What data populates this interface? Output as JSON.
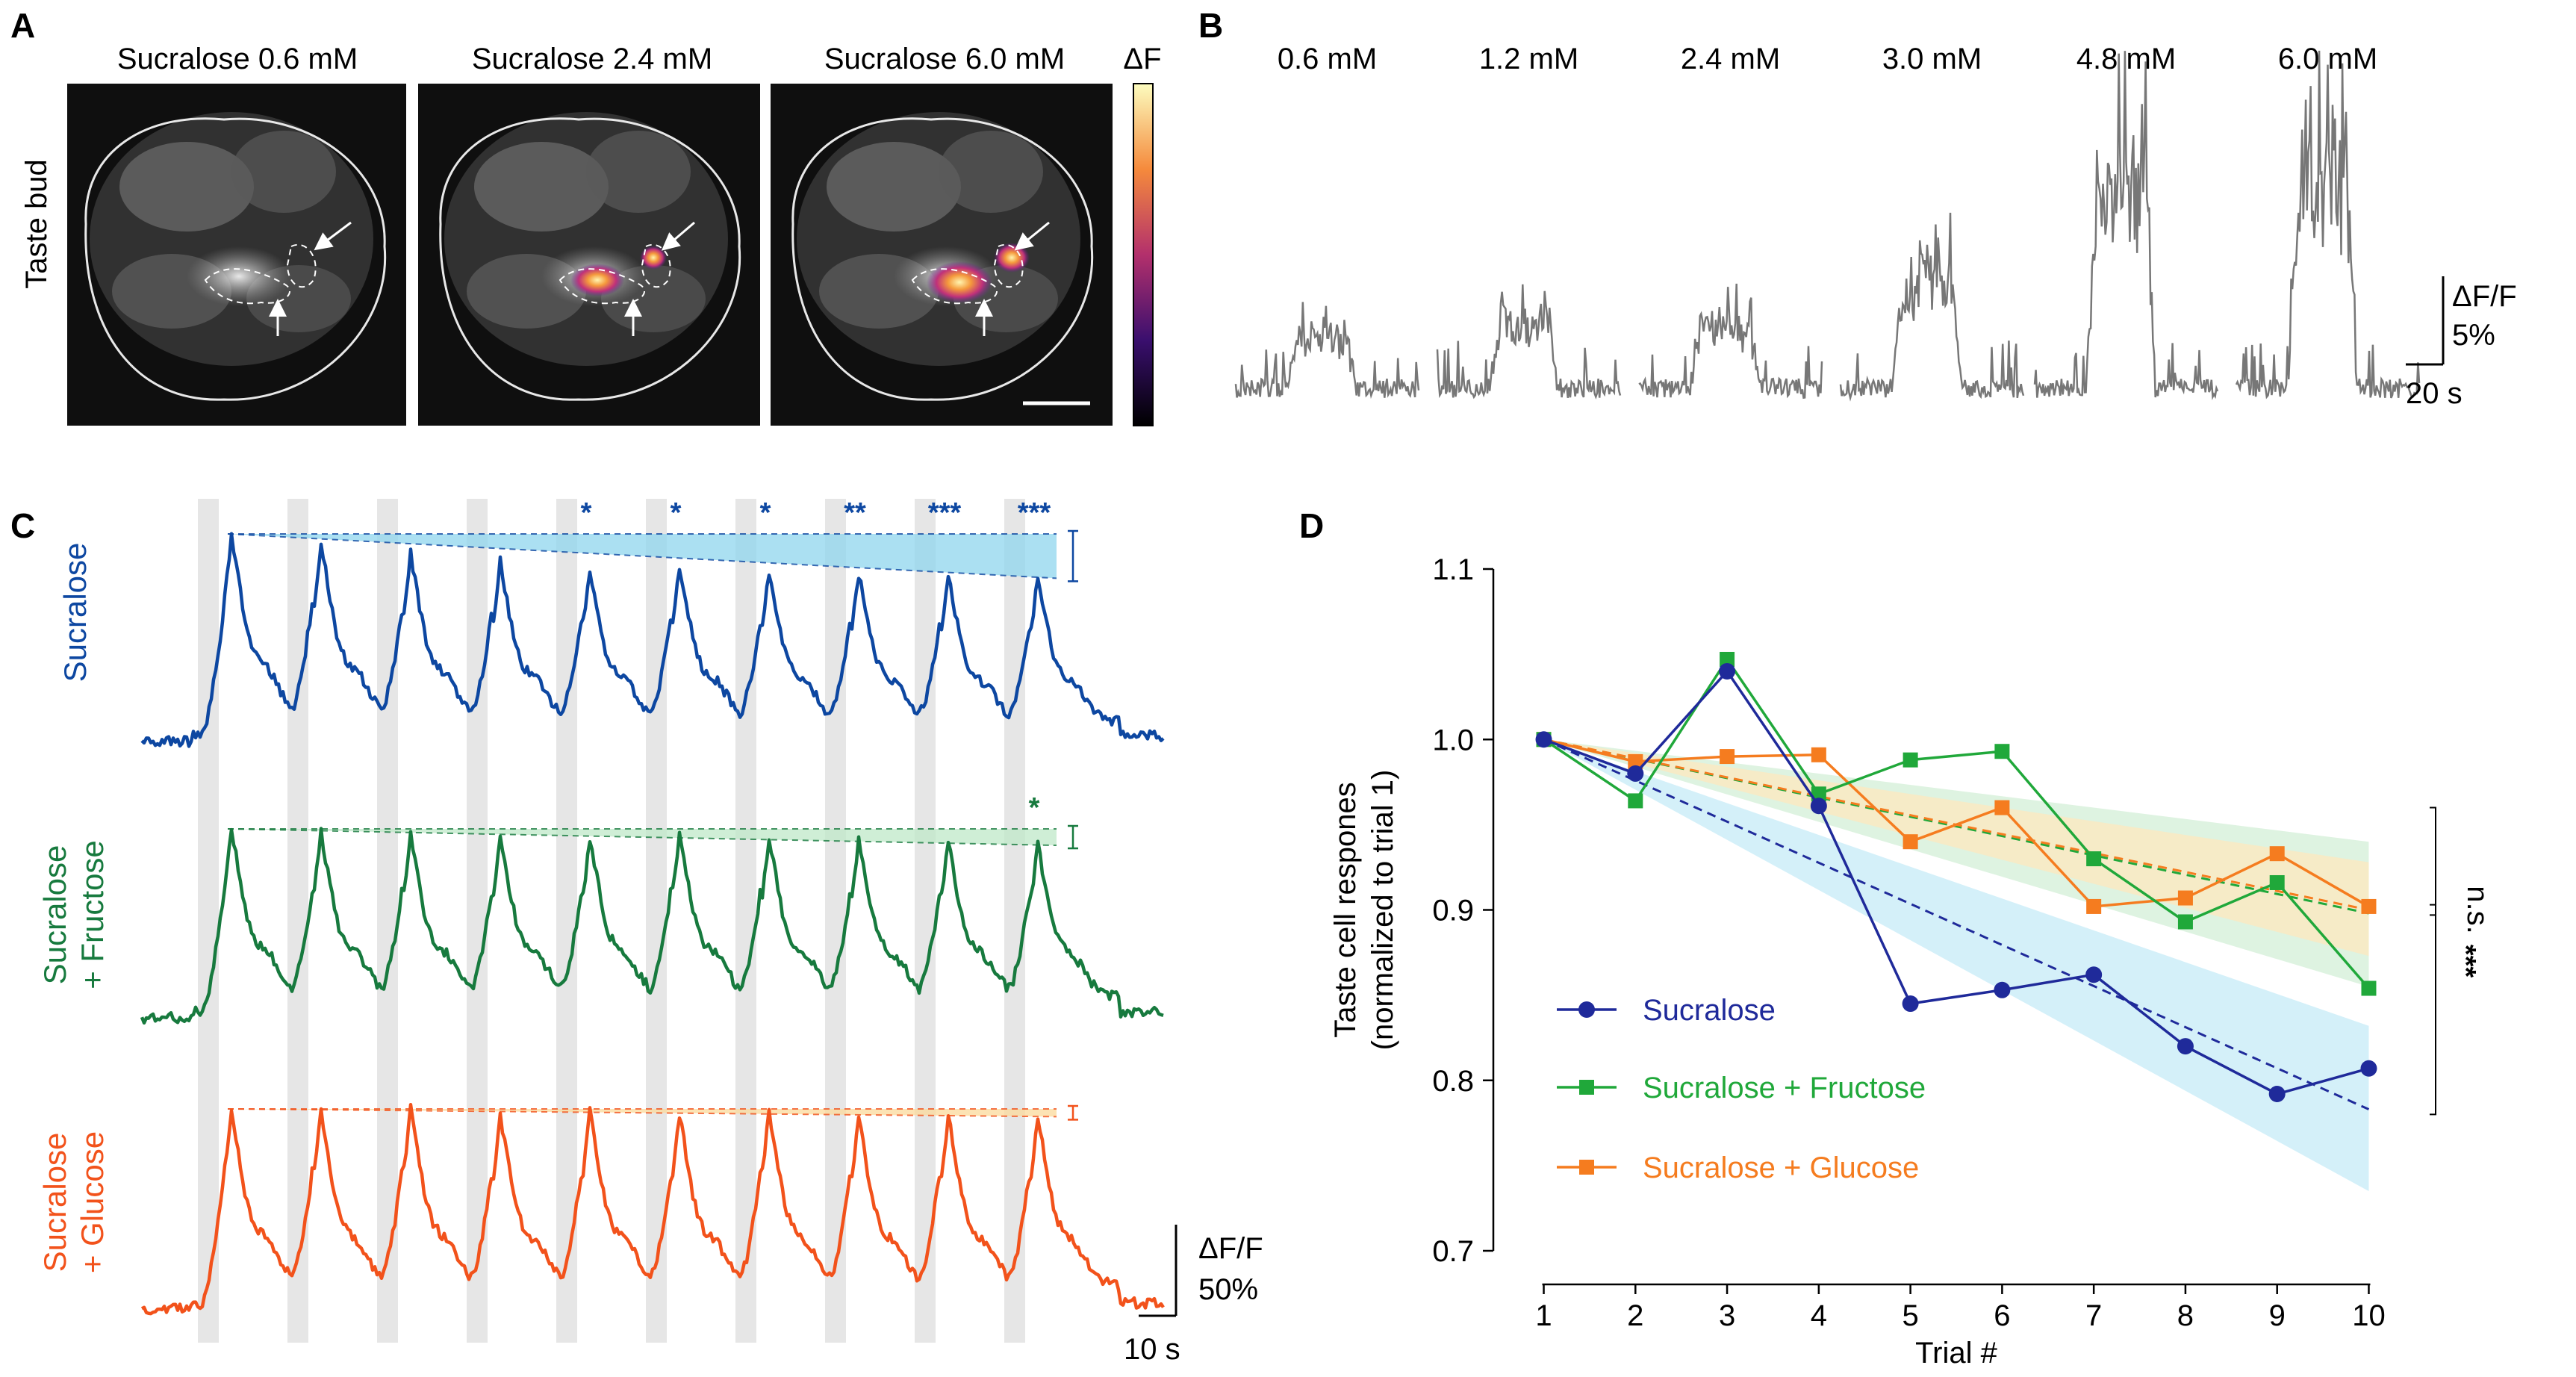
{
  "panelA": {
    "label": "A",
    "row_label": "Taste bud",
    "titles": [
      "Sucralose 0.6 mM",
      "Sucralose 2.4 mM",
      "Sucralose 6.0 mM"
    ],
    "colorbar_label": "ΔF",
    "colors": {
      "image_bg": "#0f0f0f",
      "outline": "#e8e8e8"
    }
  },
  "panelB": {
    "label": "B",
    "concentrations": [
      "0.6 mM",
      "1.2 mM",
      "2.4 mM",
      "3.0 mM",
      "4.8 mM",
      "6.0 mM"
    ],
    "response_pct": [
      3.5,
      4.5,
      4.5,
      7.5,
      14.5,
      14.0
    ],
    "scale_y": "ΔF/F",
    "scale_y_value": "5%",
    "scale_x": "20 s",
    "colors": {
      "trace": "#777777"
    }
  },
  "panelC": {
    "label": "C",
    "stimulus_count": 10,
    "traces": [
      {
        "name": "Sucralose",
        "label_lines": [
          "Sucralose"
        ],
        "color": "#0d47a1",
        "band": "#8fd6ee",
        "peaks_rel": [
          1.0,
          0.97,
          0.9,
          0.86,
          0.82,
          0.84,
          0.82,
          0.8,
          0.79,
          0.78
        ],
        "stars": [
          "",
          "",
          "",
          "",
          "*",
          "*",
          "*",
          "**",
          "***",
          "***"
        ]
      },
      {
        "name": "Sucralose + Fructose",
        "label_lines": [
          "Sucralose",
          "+ Fructose"
        ],
        "color": "#177a3e",
        "band": "#bfe8c8",
        "peaks_rel": [
          1.0,
          0.98,
          0.96,
          0.97,
          0.95,
          0.97,
          0.95,
          0.94,
          0.93,
          0.91
        ],
        "stars": [
          "",
          "",
          "",
          "",
          "",
          "",
          "",
          "",
          "",
          "*"
        ]
      },
      {
        "name": "Sucralose + Glucose",
        "label_lines": [
          "Sucralose",
          "+ Glucose"
        ],
        "color": "#f2521b",
        "band": "#fbd99b",
        "peaks_rel": [
          1.0,
          0.99,
          1.0,
          0.97,
          0.98,
          0.97,
          0.99,
          0.96,
          0.97,
          0.96
        ],
        "stars": [
          "",
          "",
          "",
          "",
          "",
          "",
          "",
          "",
          "",
          ""
        ]
      }
    ],
    "scale_y": "ΔF/F",
    "scale_y_value": "50%",
    "scale_x": "10 s"
  },
  "chart_data": {
    "type": "line",
    "panel": "D",
    "title": "",
    "xlabel": "Trial #",
    "ylabel_lines": [
      "Taste cell respones",
      "(normalized to trial 1)"
    ],
    "x": [
      1,
      2,
      3,
      4,
      5,
      6,
      7,
      8,
      9,
      10
    ],
    "xlim": [
      0.45,
      10.55
    ],
    "ylim": [
      0.7,
      1.1
    ],
    "yticks": [
      0.7,
      0.8,
      0.9,
      1.0,
      1.1
    ],
    "ytick_labels": [
      "0.7",
      "0.8",
      "0.9",
      "1.0",
      "1.1"
    ],
    "xtick_labels": [
      "1",
      "2",
      "3",
      "4",
      "5",
      "6",
      "7",
      "8",
      "9",
      "10"
    ],
    "series": [
      {
        "name": "Sucralose",
        "color": "#1f2a9a",
        "band": "#c9ecf7",
        "marker": "circle",
        "values": [
          1.0,
          0.98,
          1.04,
          0.961,
          0.845,
          0.853,
          0.862,
          0.82,
          0.792,
          0.807
        ],
        "fit": [
          1.0,
          0.783
        ],
        "ci_end": [
          0.735,
          0.832
        ]
      },
      {
        "name": "Sucralose + Fructose",
        "color": "#20a83a",
        "band": "#d6f0da",
        "marker": "square",
        "values": [
          1.0,
          0.964,
          1.047,
          0.968,
          0.988,
          0.993,
          0.93,
          0.893,
          0.916,
          0.854
        ],
        "fit": [
          1.0,
          0.898
        ],
        "ci_end": [
          0.855,
          0.94
        ]
      },
      {
        "name": "Sucralose + Glucose",
        "color": "#f57c1f",
        "band": "#fbe8c0",
        "marker": "square",
        "values": [
          1.0,
          0.987,
          0.99,
          0.991,
          0.94,
          0.96,
          0.902,
          0.907,
          0.933,
          0.902
        ],
        "fit": [
          1.0,
          0.9
        ],
        "ci_end": [
          0.873,
          0.928
        ]
      }
    ],
    "annotations": [
      "n.s.",
      "***"
    ],
    "legend_position": "bottom-left"
  }
}
